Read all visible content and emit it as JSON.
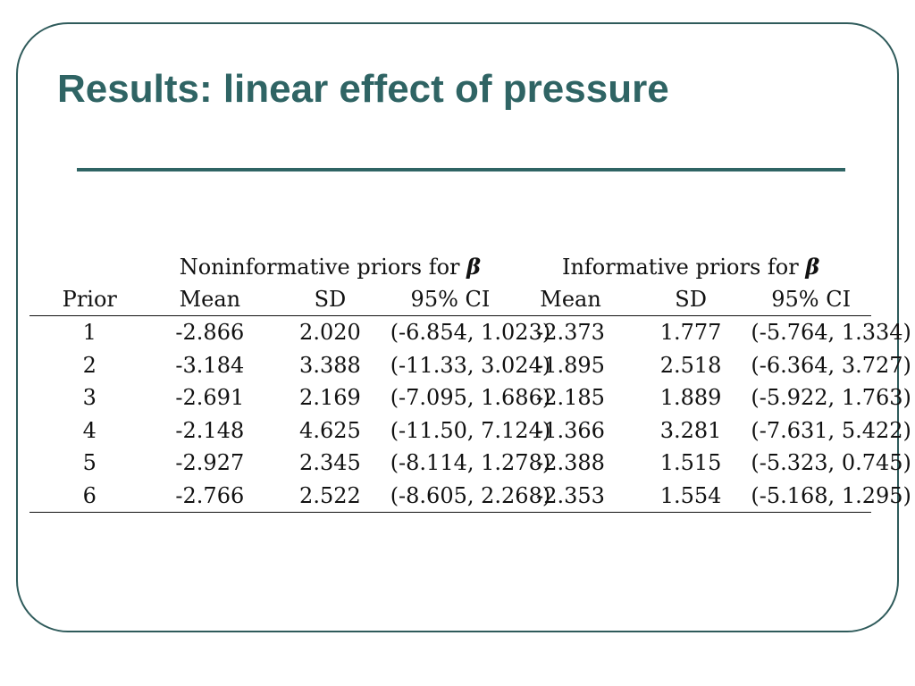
{
  "slide": {
    "title": "Results: linear effect of pressure",
    "accent_color": "#2f6464"
  },
  "table": {
    "groups": [
      {
        "label": "Noninformative priors for",
        "symbol": "β"
      },
      {
        "label": "Informative priors for",
        "symbol": "β"
      }
    ],
    "columns": [
      "Prior",
      "Mean",
      "SD",
      "95% CI",
      "Mean",
      "SD",
      "95% CI"
    ],
    "rows": [
      [
        "1",
        "-2.866",
        "2.020",
        "(-6.854, 1.023)",
        "-2.373",
        "1.777",
        "(-5.764, 1.334)"
      ],
      [
        "2",
        "-3.184",
        "3.388",
        "(-11.33, 3.024)",
        "-1.895",
        "2.518",
        "(-6.364, 3.727)"
      ],
      [
        "3",
        "-2.691",
        "2.169",
        "(-7.095, 1.686)",
        "-2.185",
        "1.889",
        "(-5.922, 1.763)"
      ],
      [
        "4",
        "-2.148",
        "4.625",
        "(-11.50, 7.124)",
        "-1.366",
        "3.281",
        "(-7.631, 5.422)"
      ],
      [
        "5",
        "-2.927",
        "2.345",
        "(-8.114, 1.278)",
        "-2.388",
        "1.515",
        "(-5.323, 0.745)"
      ],
      [
        "6",
        "-2.766",
        "2.522",
        "(-8.605, 2.268)",
        "-2.353",
        "1.554",
        "(-5.168, 1.295)"
      ]
    ]
  }
}
